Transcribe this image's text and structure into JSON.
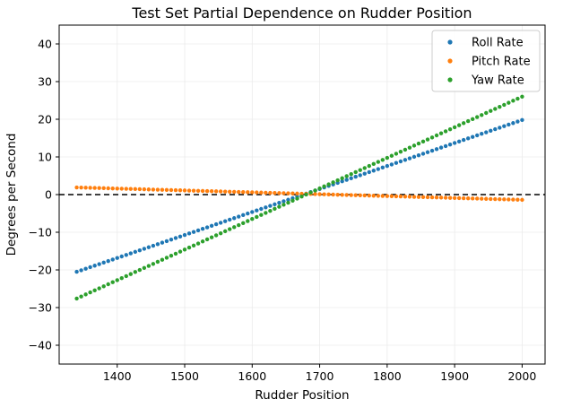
{
  "chart_data": {
    "type": "scatter",
    "title": "Test Set Partial Dependence on Rudder Position",
    "xlabel": "Rudder Position",
    "ylabel": "Degrees per Second",
    "xlim": [
      1314,
      2034
    ],
    "ylim": [
      -45,
      45
    ],
    "xticks": [
      1400,
      1500,
      1600,
      1700,
      1800,
      1900,
      2000
    ],
    "yticks": [
      -40,
      -30,
      -20,
      -10,
      0,
      10,
      20,
      30,
      40
    ],
    "grid": true,
    "legend_position": "top-right",
    "reference_line": {
      "y": 0,
      "style": "dashed",
      "color": "#000000"
    },
    "x_range": [
      1340,
      2000
    ],
    "num_points": 100,
    "series": [
      {
        "name": "Roll Rate",
        "color": "#1f77b4",
        "y_start": -20.5,
        "y_end": 19.8
      },
      {
        "name": "Pitch Rate",
        "color": "#ff7f0e",
        "y_start": 1.9,
        "y_end": -1.4
      },
      {
        "name": "Yaw Rate",
        "color": "#2ca02c",
        "y_start": -27.6,
        "y_end": 26.0
      }
    ]
  }
}
